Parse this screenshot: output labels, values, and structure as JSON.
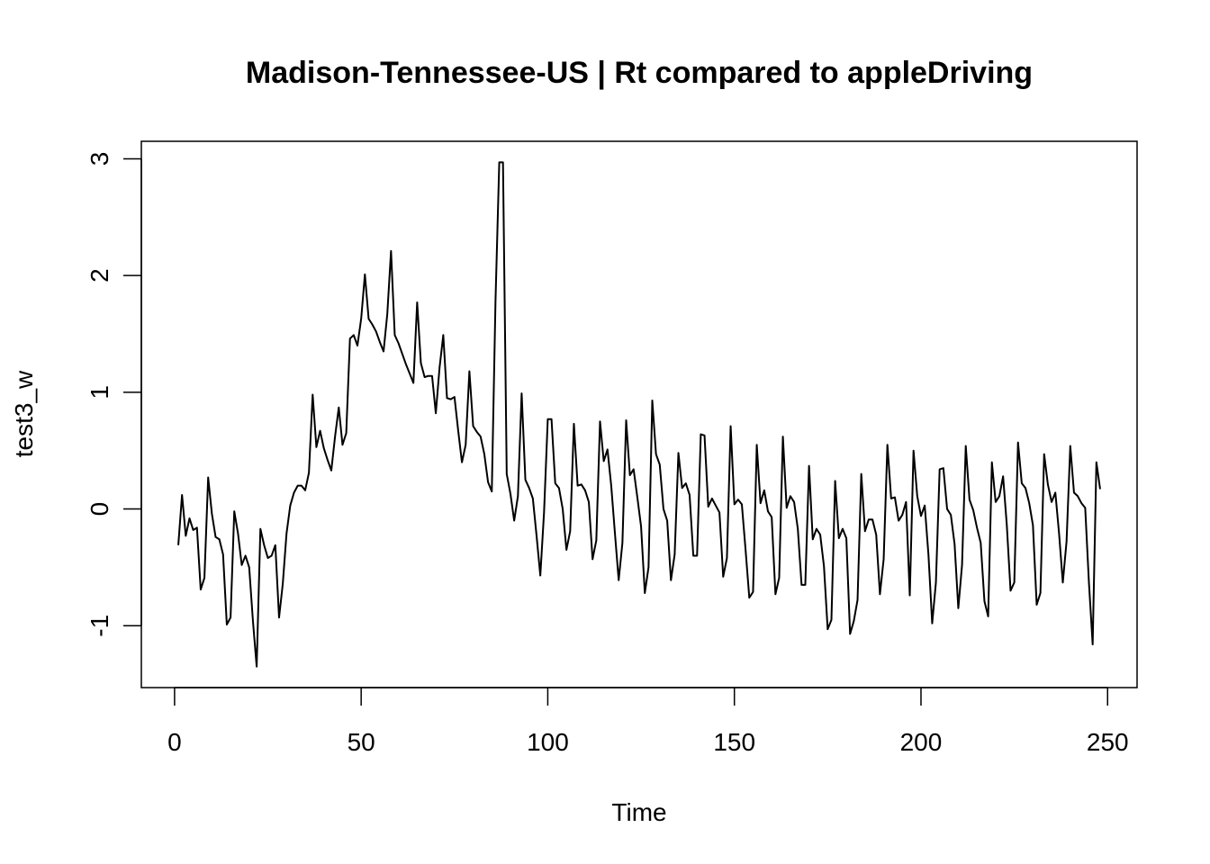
{
  "chart_data": {
    "type": "line",
    "title": "Madison-Tennessee-US | Rt compared to appleDriving",
    "xlabel": "Time",
    "ylabel": "test3_w",
    "xlim": [
      -8.9,
      257.9
    ],
    "ylim": [
      -1.53,
      3.15
    ],
    "x_ticks": [
      "0",
      "50",
      "100",
      "150",
      "200",
      "250"
    ],
    "y_ticks": [
      "-1",
      "0",
      "1",
      "2",
      "3"
    ],
    "x_tick_values": [
      0,
      50,
      100,
      150,
      200,
      250
    ],
    "y_tick_values": [
      -1,
      0,
      1,
      2,
      3
    ],
    "grid": false,
    "legend": "none",
    "series": [
      {
        "x_start": 1,
        "values": [
          -0.31,
          0.12,
          -0.23,
          -0.08,
          -0.18,
          -0.16,
          -0.69,
          -0.59,
          0.27,
          -0.04,
          -0.24,
          -0.26,
          -0.39,
          -0.99,
          -0.93,
          -0.02,
          -0.21,
          -0.48,
          -0.4,
          -0.5,
          -0.96,
          -1.35,
          -0.17,
          -0.31,
          -0.42,
          -0.4,
          -0.31,
          -0.93,
          -0.64,
          -0.21,
          0.03,
          0.14,
          0.2,
          0.2,
          0.16,
          0.31,
          0.98,
          0.53,
          0.67,
          0.52,
          0.42,
          0.33,
          0.62,
          0.87,
          0.55,
          0.65,
          1.46,
          1.49,
          1.4,
          1.63,
          2.01,
          1.63,
          1.58,
          1.52,
          1.43,
          1.35,
          1.67,
          2.21,
          1.49,
          1.42,
          1.33,
          1.24,
          1.16,
          1.08,
          1.77,
          1.25,
          1.13,
          1.14,
          1.14,
          0.82,
          1.21,
          1.49,
          0.95,
          0.94,
          0.96,
          0.67,
          0.4,
          0.55,
          1.18,
          0.71,
          0.66,
          0.62,
          0.47,
          0.23,
          0.15,
          1.79,
          2.97,
          2.97,
          0.3,
          0.13,
          -0.1,
          0.11,
          0.99,
          0.25,
          0.18,
          0.09,
          -0.23,
          -0.57,
          -0.03,
          0.77,
          0.77,
          0.22,
          0.18,
          0.0,
          -0.35,
          -0.19,
          0.73,
          0.2,
          0.21,
          0.16,
          0.06,
          -0.43,
          -0.27,
          0.75,
          0.41,
          0.51,
          0.2,
          -0.21,
          -0.61,
          -0.29,
          0.76,
          0.29,
          0.34,
          0.1,
          -0.15,
          -0.72,
          -0.5,
          0.93,
          0.47,
          0.38,
          0.0,
          -0.1,
          -0.61,
          -0.39,
          0.48,
          0.18,
          0.22,
          0.12,
          -0.4,
          -0.4,
          0.64,
          0.63,
          0.02,
          0.09,
          0.03,
          -0.03,
          -0.58,
          -0.42,
          0.71,
          0.04,
          0.08,
          0.04,
          -0.35,
          -0.76,
          -0.71,
          0.55,
          0.05,
          0.16,
          -0.02,
          -0.07,
          -0.73,
          -0.59,
          0.62,
          0.01,
          0.11,
          0.06,
          -0.17,
          -0.65,
          -0.65,
          0.37,
          -0.26,
          -0.17,
          -0.22,
          -0.49,
          -1.03,
          -0.95,
          0.24,
          -0.25,
          -0.17,
          -0.25,
          -1.07,
          -0.96,
          -0.78,
          0.3,
          -0.19,
          -0.09,
          -0.09,
          -0.22,
          -0.73,
          -0.43,
          0.55,
          0.09,
          0.1,
          -0.1,
          -0.05,
          0.06,
          -0.74,
          0.5,
          0.11,
          -0.06,
          0.03,
          -0.39,
          -0.98,
          -0.63,
          0.34,
          0.35,
          0.0,
          -0.05,
          -0.3,
          -0.85,
          -0.48,
          0.54,
          0.08,
          -0.01,
          -0.16,
          -0.29,
          -0.79,
          -0.92,
          0.4,
          0.06,
          0.11,
          0.28,
          -0.14,
          -0.7,
          -0.63,
          0.57,
          0.22,
          0.18,
          0.05,
          -0.14,
          -0.82,
          -0.72,
          0.47,
          0.21,
          0.06,
          0.14,
          -0.21,
          -0.63,
          -0.28,
          0.54,
          0.14,
          0.11,
          0.05,
          0.01,
          -0.63,
          -1.16,
          0.4,
          0.17
        ]
      }
    ]
  }
}
